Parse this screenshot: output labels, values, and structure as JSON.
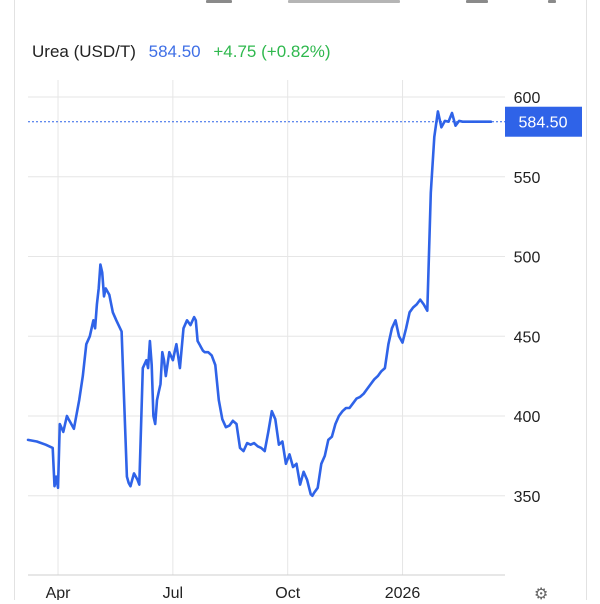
{
  "header": {
    "symbol": "Urea (USD/T)",
    "price": "584.50",
    "change": "+4.75 (+0.82%)"
  },
  "colors": {
    "line": "#2f63e8",
    "price_text": "#3f6fe6",
    "change_text": "#2fb84e",
    "price_label_bg": "#2f63e8",
    "grid": "#e6e6e6",
    "axis_text": "#222222"
  },
  "icons": {
    "settings": "gear-icon"
  },
  "chart_data": {
    "type": "line",
    "title": "Urea (USD/T)",
    "xlabel": "",
    "ylabel": "",
    "ylim": [
      300,
      610
    ],
    "y_ticks": [
      350,
      400,
      450,
      500,
      550,
      600
    ],
    "x_ticks": [
      {
        "label": "Apr",
        "index": 17
      },
      {
        "label": "Jul",
        "index": 82
      },
      {
        "label": "Oct",
        "index": 147
      },
      {
        "label": "2026",
        "index": 212
      }
    ],
    "x_domain": [
      0,
      270
    ],
    "grid": true,
    "last_price": 584.5,
    "last_price_label": "584.50",
    "series": [
      {
        "x": [
          0,
          5,
          10,
          14,
          15,
          16,
          17,
          18,
          20,
          22,
          23,
          24,
          26,
          29,
          31,
          33,
          35,
          37,
          38,
          39,
          40,
          41,
          42,
          43,
          44,
          46,
          48,
          50,
          53,
          56,
          57,
          58,
          59,
          60,
          61,
          62,
          63,
          65,
          67,
          68,
          69,
          70,
          71,
          72,
          73,
          74,
          75,
          76,
          77,
          78,
          80,
          82,
          83,
          84,
          86,
          88,
          90,
          92,
          94,
          95,
          96,
          97,
          98,
          99,
          100,
          102,
          104,
          106,
          108,
          110,
          112,
          114,
          116,
          118,
          120,
          122,
          124,
          126,
          128,
          130,
          132,
          134,
          136,
          138,
          140,
          142,
          144,
          146,
          148,
          150,
          152,
          154,
          156,
          158,
          160,
          161,
          162,
          164,
          166,
          168,
          170,
          172,
          174,
          176,
          178,
          180,
          182,
          184,
          186,
          188,
          190,
          192,
          194,
          196,
          198,
          200,
          202,
          204,
          206,
          208,
          210,
          212,
          214,
          216,
          218,
          220,
          222,
          224,
          226,
          228,
          230,
          232,
          234,
          236,
          238,
          240,
          242,
          244,
          246,
          248,
          250,
          252,
          254,
          256,
          257,
          258,
          259,
          260,
          261,
          262
        ],
        "values": [
          385,
          384,
          382,
          380,
          356,
          362,
          355,
          395,
          390,
          400,
          398,
          396,
          392,
          410,
          425,
          445,
          450,
          460,
          455,
          470,
          480,
          495,
          490,
          475,
          480,
          476,
          465,
          460,
          453,
          362,
          358,
          356,
          360,
          364,
          362,
          360,
          357,
          430,
          435,
          430,
          447,
          432,
          400,
          395,
          410,
          415,
          420,
          440,
          435,
          425,
          440,
          435,
          440,
          445,
          430,
          455,
          460,
          457,
          462,
          460,
          447,
          445,
          443,
          441,
          440,
          440,
          438,
          432,
          410,
          398,
          393,
          394,
          397,
          395,
          380,
          378,
          383,
          382,
          383,
          381,
          380,
          378,
          390,
          403,
          398,
          382,
          384,
          370,
          376,
          368,
          370,
          357,
          365,
          360,
          351,
          350,
          352,
          355,
          370,
          375,
          385,
          387,
          395,
          400,
          403,
          405,
          405,
          408,
          411,
          412,
          414,
          417,
          420,
          423,
          425,
          428,
          430,
          445,
          455,
          460,
          450,
          446,
          455,
          465,
          468,
          470,
          473,
          470,
          466,
          540,
          575,
          591,
          581,
          585,
          584.5,
          590,
          582,
          585,
          584.5,
          584.5,
          584.5,
          584.5,
          584.5,
          584.5,
          584.5,
          584.5,
          584.5,
          584.5,
          584.5,
          584.5
        ]
      }
    ]
  }
}
